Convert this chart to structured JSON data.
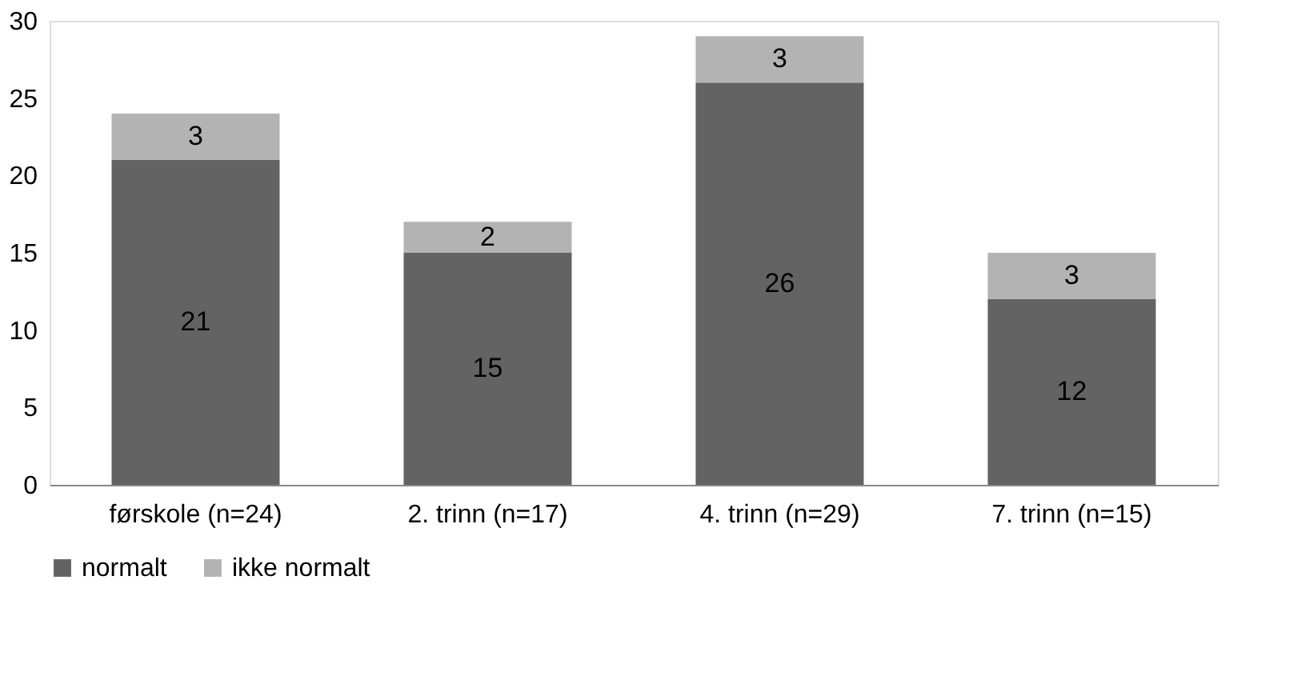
{
  "chart_data": {
    "type": "bar",
    "stacked": true,
    "categories": [
      "førskole (n=24)",
      "2. trinn (n=17)",
      "4. trinn (n=29)",
      "7. trinn (n=15)"
    ],
    "series": [
      {
        "name": "normalt",
        "color": "#636363",
        "values": [
          21,
          15,
          26,
          12
        ]
      },
      {
        "name": "ikke normalt",
        "color": "#b3b3b3",
        "values": [
          3,
          2,
          3,
          3
        ]
      }
    ],
    "ylim": [
      0,
      30
    ],
    "yticks": [
      0,
      5,
      10,
      15,
      20,
      25,
      30
    ],
    "grid": false,
    "legend": "bottom",
    "data_labels": true
  }
}
